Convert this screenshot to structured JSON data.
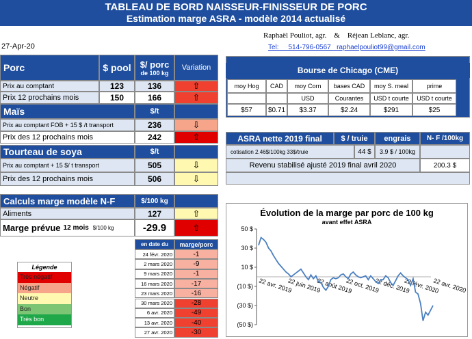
{
  "title": {
    "line1": "TABLEAU DE BORD NAISSEUR-FINISSEUR DE PORC",
    "line2": "Estimation marge ASRA - modèle 2014 actualisé"
  },
  "authors": "Raphaël Pouliot, agr.    &    Réjean Leblanc, agr.",
  "contact": "Tel:     514-796-0567   raphaelpouliot99@gmail.com",
  "date": "27-Apr-20",
  "porc": {
    "header": "Porc",
    "col_pool": "$ pool",
    "col_porc1": "$/ porc",
    "col_porc2": "de 100 kg",
    "col_variation": "Variation",
    "rows": [
      {
        "label": "Prix au comptant",
        "pool": "123",
        "porc": "136",
        "arrow": "⇧"
      },
      {
        "label": "Prix 12 prochains mois",
        "pool": "150",
        "porc": "166",
        "arrow": "⇧"
      }
    ]
  },
  "mais": {
    "header": "Maïs",
    "unit": "$/t",
    "rows": [
      {
        "label": "Prix au comptant  FOB + 15 $ /t transport",
        "value": "236",
        "arrow": "⇩"
      },
      {
        "label": "Prix des 12 prochains mois",
        "value": "242",
        "arrow": "⇧"
      }
    ]
  },
  "soya": {
    "header": "Tourteau de soya",
    "unit": "$/t",
    "rows": [
      {
        "label": "Prix au comptant + 15 $/ t  transport",
        "value": "505",
        "arrow": "⇩"
      },
      {
        "label": "Prix des 12 prochains mois",
        "value": "506",
        "arrow": "⇩"
      }
    ]
  },
  "calculs": {
    "header": "Calculs marge  modèle N-F",
    "unit": "$/100 kg",
    "aliments_label": "Aliments",
    "aliments_value": "127",
    "aliments_arrow": "⇧",
    "marge_label": "Marge prévue",
    "marge_sub": "12 mois",
    "marge_unit": "$/100 kg",
    "marge_value": "-29.9",
    "marge_arrow": "⇧"
  },
  "history": {
    "col_date": "en date du",
    "col_marge": "marge/porc",
    "rows": [
      {
        "date": "24 févr. 2020",
        "marge": "-1"
      },
      {
        "date": "2 mars 2020",
        "marge": "-9"
      },
      {
        "date": "9 mars 2020",
        "marge": "-1"
      },
      {
        "date": "16 mars 2020",
        "marge": "-17"
      },
      {
        "date": "23 mars 2020",
        "marge": "-16"
      },
      {
        "date": "30 mars 2020",
        "marge": "-28"
      },
      {
        "date": "6 avr. 2020",
        "marge": "-49"
      },
      {
        "date": "13 avr. 2020",
        "marge": "-40"
      },
      {
        "date": "27 avr. 2020",
        "marge": "-30"
      }
    ]
  },
  "legend": {
    "title": "Légende",
    "items": [
      "Très négatif",
      "Négatif",
      "Neutre",
      "Bon",
      "Très bon"
    ],
    "colors": [
      "#e00000",
      "#f6a48a",
      "#fff8b0",
      "#7cc574",
      "#1fa84a"
    ]
  },
  "chicago": {
    "header": "Bourse de Chicago (CME)",
    "columns": [
      "moy Hog",
      "CAD",
      "moy Corn",
      "bases CAD",
      "moy S. meal",
      "prime"
    ],
    "units": [
      "",
      "",
      "USD",
      "Courantes",
      "USD t courte",
      "USD t courte"
    ],
    "values": [
      "$57",
      "$0.71",
      "$3.37",
      "$2.24",
      "$291",
      "$25"
    ]
  },
  "asra": {
    "header": "ASRA nette 2019 final",
    "col_truie": "$ / truie",
    "col_engrais": "engrais",
    "col_nf": "N- F /100kg",
    "cotisation_label": "cotisation 2.46$/100kg  33$/truie",
    "cotisation_truie": "44  $",
    "cotisation_engrais": "3.9  $ / 100kg",
    "revenu_label": "Revenu stabilisé ajusté 2019 final  avril 2020",
    "revenu_value": "200.3 $"
  },
  "chart_data": {
    "type": "line",
    "title": "Évolution de la marge par porc de 100 kg",
    "subtitle": "avant effet ASRA",
    "xlabel": "",
    "ylabel": "",
    "ylim": [
      -50,
      50
    ],
    "yticks": [
      "50 $",
      "30 $",
      "10 $",
      "(10 $)",
      "(30 $)",
      "(50 $)"
    ],
    "xticks": [
      "22 avr. 2019",
      "22 juin 2019",
      "22 août 2019",
      "22 oct. 2019",
      "22 déc. 2019",
      "22 févr. 2020",
      "22 avr. 2020"
    ],
    "series": [
      {
        "color": "#4a7fc0",
        "values": [
          33,
          41,
          39,
          36,
          30,
          27,
          22,
          18,
          14,
          11,
          8,
          5,
          3,
          0,
          2,
          4,
          6,
          8,
          4,
          0,
          -3,
          2,
          -2,
          1,
          -5,
          -6,
          -11,
          -14,
          -10,
          -3,
          -1,
          -2,
          -1,
          2,
          3,
          0,
          -2,
          3,
          5,
          2,
          0,
          -1,
          0,
          1,
          -3,
          1,
          -2,
          -5,
          -7,
          -3,
          -3,
          1,
          -1,
          -6,
          -9,
          -4,
          1,
          4,
          1,
          -1,
          -3,
          -9,
          -2,
          -16,
          -18,
          -28,
          -46,
          -37,
          -40,
          -35,
          -30
        ]
      }
    ]
  }
}
